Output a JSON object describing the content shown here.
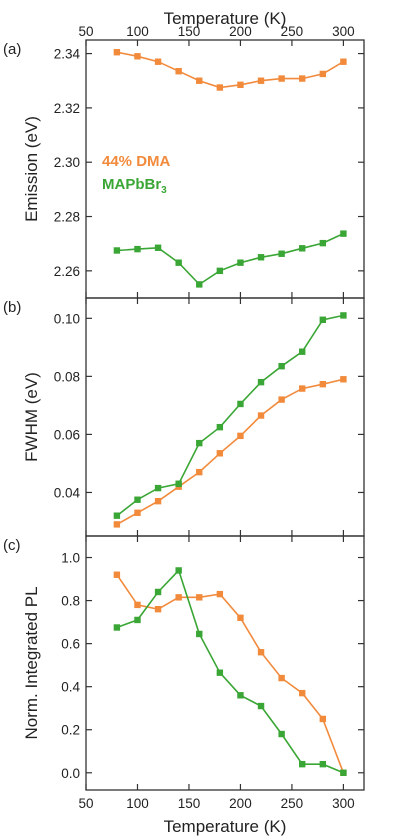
{
  "chart_data": [
    {
      "type": "line",
      "panel_label": "(a)",
      "top_xlabel": "Temperature (K)",
      "ylabel": "Emission (eV)",
      "xlim": [
        50,
        320
      ],
      "ylim": [
        2.25,
        2.345
      ],
      "yticks": [
        "2.26",
        "2.28",
        "2.30",
        "2.32",
        "2.34"
      ],
      "x": [
        80,
        100,
        120,
        140,
        160,
        180,
        200,
        220,
        240,
        260,
        280,
        300
      ],
      "series": [
        {
          "name": "44% DMA",
          "color": "#f28a3c",
          "values": [
            2.3405,
            2.339,
            2.337,
            2.3335,
            2.33,
            2.3275,
            2.3285,
            2.33,
            2.3308,
            2.3308,
            2.3325,
            2.337
          ]
        },
        {
          "name": "MAPbBr",
          "color": "#3aa635",
          "values": [
            2.2675,
            2.268,
            2.2685,
            2.263,
            2.255,
            2.26,
            2.263,
            2.265,
            2.2663,
            2.2683,
            2.2702,
            2.2737
          ]
        }
      ],
      "legend_sub": "3"
    },
    {
      "type": "line",
      "panel_label": "(b)",
      "ylabel": "FWHM (eV)",
      "xlim": [
        50,
        320
      ],
      "ylim": [
        0.025,
        0.107
      ],
      "yticks": [
        "0.04",
        "0.06",
        "0.08",
        "0.10"
      ],
      "x": [
        80,
        100,
        120,
        140,
        160,
        180,
        200,
        220,
        240,
        260,
        280,
        300
      ],
      "series": [
        {
          "color": "#f28a3c",
          "values": [
            0.029,
            0.033,
            0.037,
            0.042,
            0.047,
            0.0535,
            0.0595,
            0.0665,
            0.072,
            0.0758,
            0.0773,
            0.079
          ]
        },
        {
          "color": "#3aa635",
          "values": [
            0.032,
            0.0375,
            0.0415,
            0.043,
            0.057,
            0.0625,
            0.0705,
            0.078,
            0.0835,
            0.0885,
            0.0995,
            0.101
          ]
        }
      ]
    },
    {
      "type": "line",
      "panel_label": "(c)",
      "ylabel": "Norm. Integrated PL",
      "xlabel": "Temperature (K)",
      "xlim": [
        50,
        320
      ],
      "ylim": [
        -0.08,
        1.1
      ],
      "yticks": [
        "0.0",
        "0.2",
        "0.4",
        "0.6",
        "0.8",
        "1.0"
      ],
      "xticks": [
        "50",
        "100",
        "150",
        "200",
        "250",
        "300"
      ],
      "x": [
        80,
        100,
        120,
        140,
        160,
        180,
        200,
        220,
        240,
        260,
        280,
        300
      ],
      "series": [
        {
          "color": "#f28a3c",
          "values": [
            0.92,
            0.78,
            0.76,
            0.815,
            0.815,
            0.83,
            0.72,
            0.56,
            0.44,
            0.37,
            0.25,
            0.0
          ]
        },
        {
          "color": "#3aa635",
          "values": [
            0.675,
            0.71,
            0.84,
            0.94,
            0.645,
            0.465,
            0.36,
            0.31,
            0.18,
            0.04,
            0.04,
            0.0
          ]
        }
      ]
    }
  ]
}
